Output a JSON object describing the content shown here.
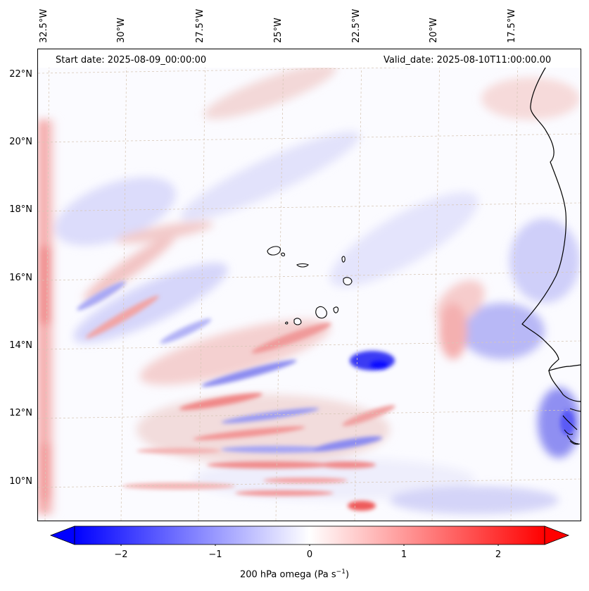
{
  "header": {
    "start_date": "Start date: 2025-08-09_00:00:00",
    "valid_date": "Valid_date: 2025-08-10T11:00:00.00"
  },
  "map": {
    "longitude_labels": [
      "32.5°W",
      "30°W",
      "27.5°W",
      "25°W",
      "22.5°W",
      "20°W",
      "17.5°W"
    ],
    "latitude_labels": [
      "22°N",
      "20°N",
      "18°N",
      "16°N",
      "14°N",
      "12°N",
      "10°N"
    ],
    "coastline_color": "#000000",
    "gridline_color": "#d8c8b8"
  },
  "colorbar": {
    "label": "200 hPa omega (Pa s",
    "label_superscript": "−1",
    "label_close": ")",
    "ticks": [
      "−2",
      "−1",
      "0",
      "1",
      "2"
    ],
    "tick_values": [
      -2,
      -1,
      0,
      1,
      2
    ],
    "range": [
      -2.7,
      2.7
    ],
    "colormap": "bwr",
    "min_color": "#0000ff",
    "mid_color": "#ffffff",
    "max_color": "#ff0000"
  }
}
